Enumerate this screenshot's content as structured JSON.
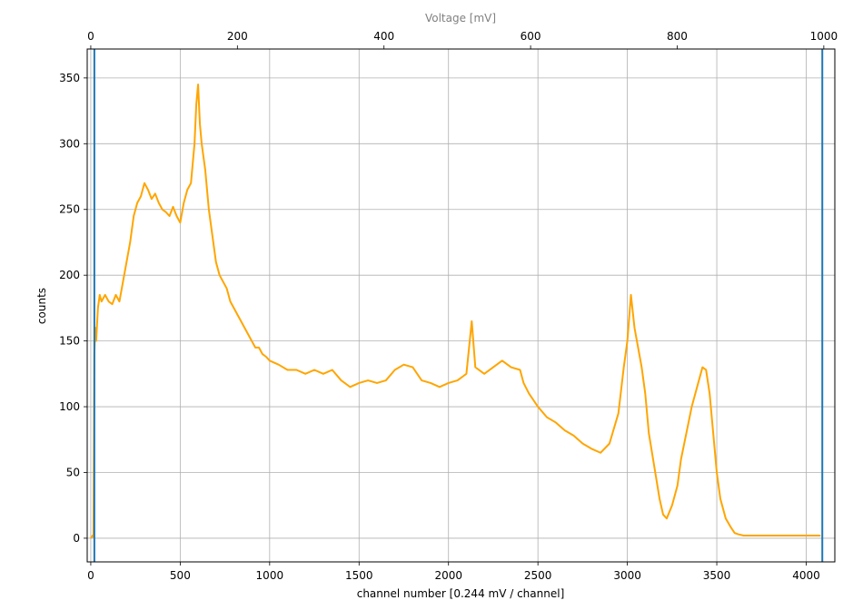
{
  "chart_data": {
    "type": "line",
    "xlabel": "channel number [0.244 mV / channel]",
    "ylabel": "counts",
    "top_xlabel": "Voltage [mV]",
    "xlim": [
      -20,
      4160
    ],
    "ylim": [
      -18,
      372
    ],
    "xticks": [
      0,
      500,
      1000,
      1500,
      2000,
      2500,
      3000,
      3500,
      4000
    ],
    "xtick_labels": [
      "0",
      "500",
      "1000",
      "1500",
      "2000",
      "2500",
      "3000",
      "3500",
      "4000"
    ],
    "yticks": [
      0,
      50,
      100,
      150,
      200,
      250,
      300,
      350
    ],
    "ytick_labels": [
      "0",
      "50",
      "100",
      "150",
      "200",
      "250",
      "300",
      "350"
    ],
    "top_xticks": [
      0,
      200,
      400,
      600,
      800,
      1000
    ],
    "top_xtick_labels": [
      "0",
      "200",
      "400",
      "600",
      "800",
      "1000"
    ],
    "top_xlim_mV": [
      -4.88,
      1015.04
    ],
    "grid": true,
    "series": [
      {
        "color": "#ffa500",
        "x": [
          0,
          10,
          15,
          20,
          25,
          30,
          40,
          50,
          60,
          80,
          100,
          120,
          140,
          160,
          180,
          200,
          220,
          240,
          260,
          280,
          300,
          320,
          340,
          360,
          380,
          400,
          420,
          440,
          460,
          480,
          500,
          520,
          540,
          560,
          580,
          590,
          600,
          610,
          620,
          630,
          640,
          660,
          680,
          700,
          720,
          740,
          760,
          780,
          800,
          820,
          840,
          860,
          880,
          900,
          920,
          940,
          960,
          980,
          1000,
          1050,
          1100,
          1150,
          1200,
          1250,
          1300,
          1350,
          1400,
          1450,
          1500,
          1550,
          1600,
          1650,
          1700,
          1750,
          1800,
          1850,
          1900,
          1950,
          2000,
          2050,
          2100,
          2130,
          2150,
          2200,
          2250,
          2300,
          2350,
          2400,
          2420,
          2450,
          2500,
          2550,
          2600,
          2650,
          2700,
          2750,
          2800,
          2850,
          2900,
          2950,
          2980,
          3000,
          3020,
          3040,
          3060,
          3080,
          3100,
          3120,
          3150,
          3180,
          3200,
          3220,
          3250,
          3280,
          3300,
          3330,
          3360,
          3390,
          3420,
          3440,
          3460,
          3480,
          3500,
          3520,
          3550,
          3580,
          3600,
          3620,
          3650,
          3700,
          3750,
          3800,
          3850,
          3900,
          3950,
          4000,
          4050,
          4080
        ],
        "y": [
          0,
          2,
          1,
          140,
          160,
          150,
          175,
          185,
          180,
          185,
          180,
          178,
          185,
          180,
          195,
          210,
          225,
          245,
          255,
          260,
          270,
          265,
          258,
          262,
          255,
          250,
          248,
          245,
          252,
          245,
          240,
          255,
          265,
          270,
          300,
          330,
          345,
          315,
          300,
          290,
          280,
          250,
          230,
          210,
          200,
          195,
          190,
          180,
          175,
          170,
          165,
          160,
          155,
          150,
          145,
          145,
          140,
          138,
          135,
          132,
          128,
          128,
          125,
          128,
          125,
          128,
          120,
          115,
          118,
          120,
          118,
          120,
          128,
          132,
          130,
          120,
          118,
          115,
          118,
          120,
          125,
          165,
          130,
          125,
          130,
          135,
          130,
          128,
          118,
          110,
          100,
          92,
          88,
          82,
          78,
          72,
          68,
          65,
          72,
          95,
          130,
          150,
          185,
          160,
          145,
          130,
          110,
          80,
          55,
          30,
          18,
          15,
          25,
          40,
          60,
          80,
          100,
          115,
          130,
          128,
          110,
          80,
          50,
          30,
          15,
          8,
          4,
          3,
          2,
          2,
          2,
          2,
          2,
          2,
          2,
          2,
          2,
          2
        ]
      }
    ],
    "vertical_lines": [
      {
        "x": 20,
        "color": "#1f77b4"
      },
      {
        "x": 4090,
        "color": "#1f77b4"
      }
    ]
  }
}
